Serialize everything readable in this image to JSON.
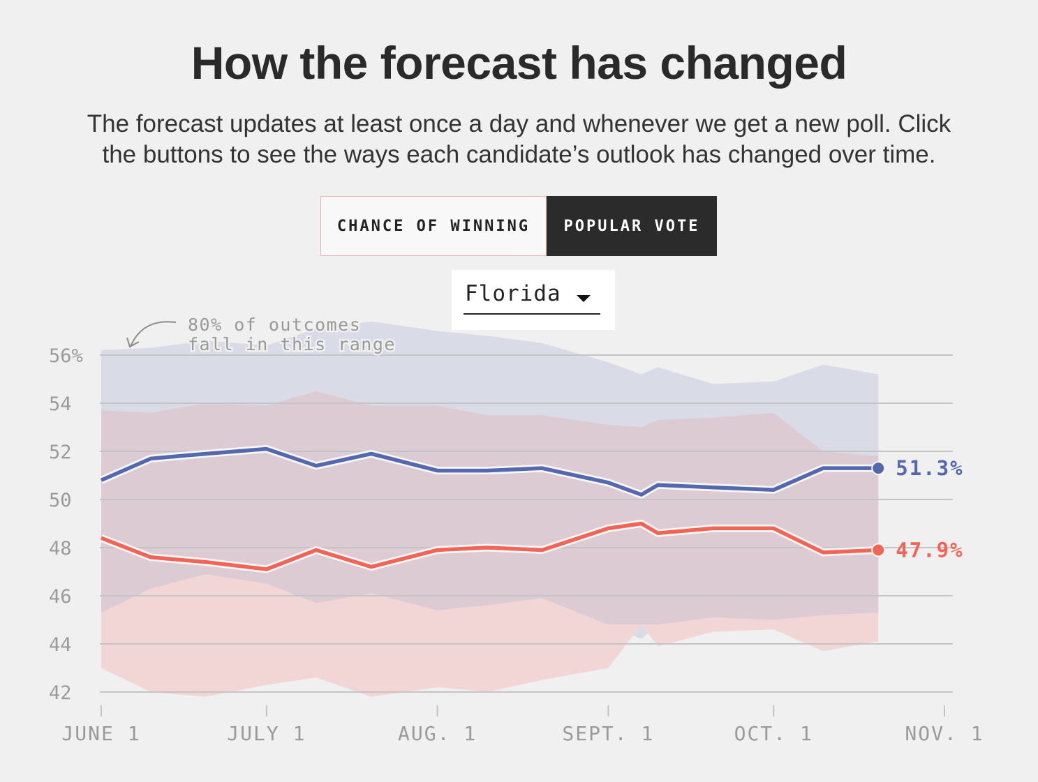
{
  "header": {
    "title": "How the forecast has changed",
    "subtitle_line1": "The forecast updates at least once a day and whenever we get a new poll. Click",
    "subtitle_line2": "the buttons to see the ways each candidate’s outlook has changed over time."
  },
  "toggles": {
    "chance_label": "CHANCE OF WINNING",
    "popular_label": "POPULAR VOTE",
    "active": "popular"
  },
  "state_select": {
    "value": "Florida"
  },
  "annotation": {
    "line1": "80% of outcomes",
    "line2": "fall in this range"
  },
  "colors": {
    "dem": "#5468b0",
    "rep": "#f26456",
    "dem_band": "#d9dce6",
    "rep_band": "#f2d6d6",
    "overlap_band": "#dccbd2",
    "grid": "#c4c4c4",
    "axis_text": "#9a9a9a",
    "background": "#f0f0f0"
  },
  "chart_data": {
    "type": "line",
    "x_ticks": [
      "JUNE 1",
      "JULY 1",
      "AUG. 1",
      "SEPT. 1",
      "OCT. 1",
      "NOV. 1"
    ],
    "y_ticks": [
      "56%",
      "54",
      "52",
      "50",
      "48",
      "46",
      "44",
      "42"
    ],
    "ylim": [
      42,
      56
    ],
    "grid": true,
    "x_dates": [
      "2020-06-01",
      "2020-06-10",
      "2020-06-20",
      "2020-07-01",
      "2020-07-10",
      "2020-07-20",
      "2020-08-01",
      "2020-08-10",
      "2020-08-20",
      "2020-09-01",
      "2020-09-07",
      "2020-09-10",
      "2020-09-20",
      "2020-10-01",
      "2020-10-10",
      "2020-10-20"
    ],
    "series": [
      {
        "name": "dem",
        "end_label": "51.3%",
        "values": [
          50.8,
          51.7,
          51.9,
          52.1,
          51.4,
          51.9,
          51.2,
          51.2,
          51.3,
          50.7,
          50.2,
          50.6,
          50.5,
          50.4,
          51.3,
          51.3
        ],
        "upper": [
          56.2,
          56.3,
          56.6,
          56.4,
          57.1,
          57.4,
          57.0,
          56.8,
          56.5,
          55.7,
          55.2,
          55.5,
          54.8,
          54.9,
          55.6,
          55.2
        ],
        "lower": [
          45.3,
          46.3,
          46.9,
          46.5,
          45.7,
          46.1,
          45.4,
          45.6,
          45.9,
          44.8,
          44.2,
          44.8,
          45.1,
          45.0,
          45.2,
          45.3
        ]
      },
      {
        "name": "rep",
        "end_label": "47.9%",
        "values": [
          48.4,
          47.6,
          47.4,
          47.1,
          47.9,
          47.2,
          47.9,
          48.0,
          47.9,
          48.8,
          49.0,
          48.6,
          48.8,
          48.8,
          47.8,
          47.9
        ],
        "upper": [
          53.7,
          53.6,
          54.0,
          53.9,
          54.5,
          53.9,
          53.9,
          53.5,
          53.5,
          53.1,
          53.0,
          53.3,
          53.4,
          53.6,
          52.0,
          51.8
        ],
        "lower": [
          43.0,
          42.0,
          41.8,
          42.3,
          42.6,
          41.8,
          42.2,
          42.0,
          42.5,
          43.0,
          44.8,
          43.9,
          44.5,
          44.6,
          43.7,
          44.1
        ]
      }
    ]
  }
}
